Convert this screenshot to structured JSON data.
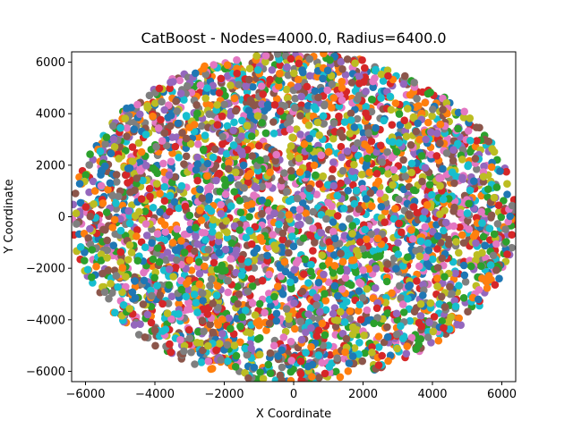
{
  "chart_data": {
    "type": "scatter",
    "title": "CatBoost - Nodes=4000.0, Radius=6400.0",
    "xlabel": "X Coordinate",
    "ylabel": "Y Coordinate",
    "xlim": [
      -6400,
      6400
    ],
    "ylim": [
      -6400,
      6400
    ],
    "x_ticks": [
      -6000,
      -4000,
      -2000,
      0,
      2000,
      4000,
      6000
    ],
    "y_ticks": [
      -6000,
      -4000,
      -2000,
      0,
      2000,
      4000,
      6000
    ],
    "x_tick_labels": [
      "−6000",
      "−4000",
      "−2000",
      "0",
      "2000",
      "4000",
      "6000"
    ],
    "y_tick_labels": [
      "−6000",
      "−4000",
      "−2000",
      "0",
      "2000",
      "4000",
      "6000"
    ],
    "grid": false,
    "legend": "none",
    "nodes": 4000,
    "radius": 6400,
    "distribution": "uniform in disc of radius 6400 centered at (0,0)",
    "colors": [
      "#1f77b4",
      "#ff7f0e",
      "#2ca02c",
      "#d62728",
      "#9467bd",
      "#8c564b",
      "#e377c2",
      "#7f7f7f",
      "#bcbd22",
      "#17becf"
    ]
  }
}
